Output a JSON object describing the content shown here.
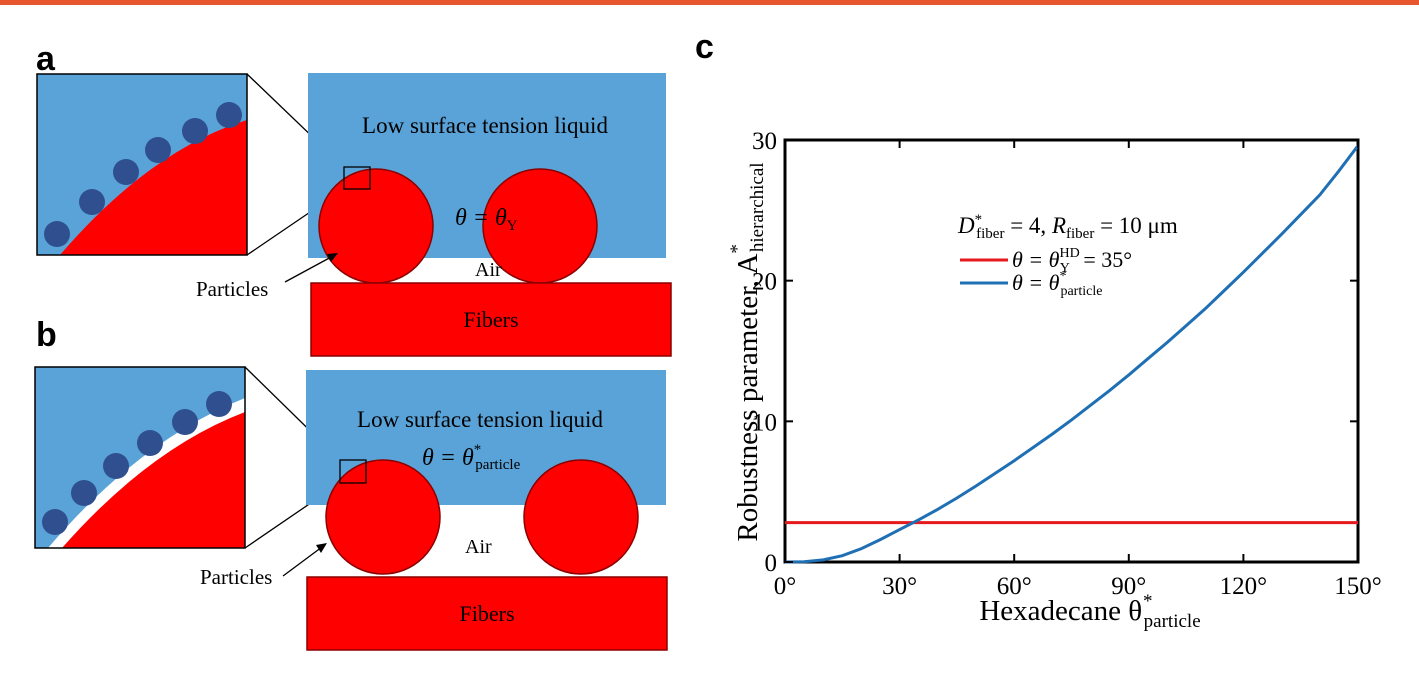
{
  "panels": {
    "a": {
      "letter": "a",
      "liquid_label": "Low surface tension liquid",
      "theta_main": "θ = θ",
      "theta_sub": "Y",
      "air_label": "Air",
      "particles_label": "Particles",
      "fibers_label": "Fibers"
    },
    "b": {
      "letter": "b",
      "liquid_label": "Low surface tension liquid",
      "theta_main": "θ = θ",
      "theta_sup": "*",
      "theta_sub": "particle",
      "air_label": "Air",
      "particles_label": "Particles",
      "fibers_label": "Fibers"
    },
    "c": {
      "letter": "c"
    }
  },
  "colors": {
    "liquid": "#5aa3d8",
    "solid": "#ff0000",
    "particle": "#2f4f8f",
    "red_series": "#e41a1c",
    "blue_series": "#1f6fb5",
    "topbar": "#e8562f"
  },
  "chart_data": {
    "type": "line",
    "xlabel_main": "Hexadecane θ",
    "xlabel_sup": "*",
    "xlabel_sub": "particle",
    "ylabel_main": "Robustness parameter, A",
    "ylabel_sup": "*",
    "ylabel_sub": "hierarchical",
    "xlim": [
      0,
      150
    ],
    "ylim": [
      0,
      30
    ],
    "x_ticks": [
      0,
      30,
      60,
      90,
      120,
      150
    ],
    "x_tick_labels": [
      "0°",
      "30°",
      "60°",
      "90°",
      "120°",
      "150°"
    ],
    "y_ticks": [
      0,
      10,
      20,
      30
    ],
    "y_tick_labels": [
      "0",
      "10",
      "20",
      "30"
    ],
    "annotation": {
      "d_main": "D",
      "d_sup": "*",
      "d_sub": "fiber",
      "d_val": " = 4, ",
      "r_main": "R",
      "r_sub": "fiber",
      "r_val": " = 10 μm"
    },
    "legend": {
      "placement": "top-right",
      "entries": [
        {
          "main": "θ = θ",
          "sup": "HD",
          "sub": "Y",
          "tail": " = 35°"
        },
        {
          "main": "θ = θ",
          "sup": "*",
          "sub": "particle",
          "tail": ""
        }
      ]
    },
    "series": [
      {
        "color_key": "red_series",
        "x": [
          0,
          150
        ],
        "y": [
          2.8,
          2.8
        ]
      },
      {
        "color_key": "blue_series",
        "x": [
          0,
          5,
          10,
          15,
          20,
          25,
          30,
          35,
          40,
          45,
          50,
          55,
          60,
          65,
          70,
          75,
          80,
          85,
          90,
          95,
          100,
          105,
          110,
          115,
          120,
          125,
          130,
          135,
          140,
          145,
          150
        ],
        "y": [
          0,
          0.02,
          0.15,
          0.45,
          0.95,
          1.6,
          2.3,
          3.0,
          3.75,
          4.55,
          5.4,
          6.3,
          7.2,
          8.15,
          9.1,
          10.1,
          11.15,
          12.2,
          13.3,
          14.45,
          15.6,
          16.8,
          18.0,
          19.3,
          20.6,
          21.95,
          23.3,
          24.7,
          26.1,
          27.8,
          29.6
        ]
      }
    ]
  }
}
